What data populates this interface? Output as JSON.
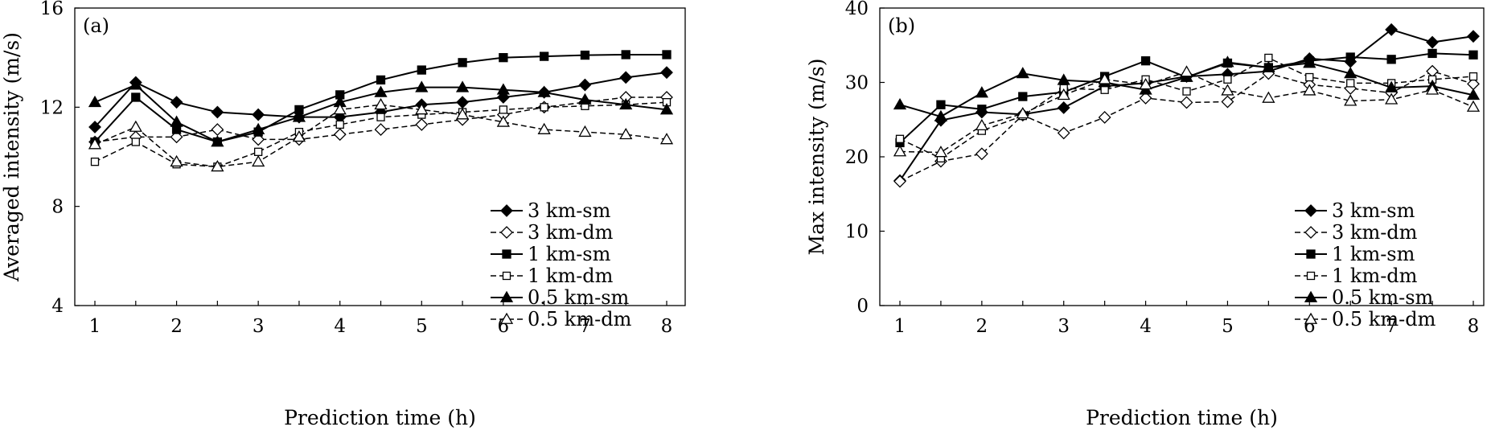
{
  "chart_data": [
    {
      "type": "line",
      "panel_label": "(a)",
      "xlabel": "Prediction time (h)",
      "ylabel": "Averaged intensity (m/s)",
      "xlim": [
        1,
        8
      ],
      "ylim": [
        4,
        16
      ],
      "xticks": [
        "1",
        "2",
        "3",
        "4",
        "5",
        "6",
        "7",
        "8"
      ],
      "yticks": [
        "4",
        "8",
        "12",
        "16"
      ],
      "legend_position": "lower-right",
      "x": [
        1,
        1.5,
        2,
        2.5,
        3,
        3.5,
        4,
        4.5,
        5,
        5.5,
        6,
        6.5,
        7,
        7.5,
        8
      ],
      "series": [
        {
          "name": "3 km-sm",
          "dashed": false,
          "marker": "diamond-filled",
          "values": [
            11.2,
            13.0,
            12.2,
            11.8,
            11.7,
            11.6,
            11.6,
            11.8,
            12.1,
            12.2,
            12.4,
            12.6,
            12.9,
            13.2,
            13.4
          ]
        },
        {
          "name": "3 km-dm",
          "dashed": true,
          "marker": "diamond-open",
          "values": [
            10.6,
            10.8,
            10.8,
            11.1,
            10.7,
            10.7,
            10.9,
            11.1,
            11.3,
            11.5,
            11.7,
            12.0,
            12.2,
            12.4,
            12.4
          ]
        },
        {
          "name": "1 km-sm",
          "dashed": false,
          "marker": "square-filled",
          "values": [
            10.6,
            12.4,
            11.1,
            10.6,
            11.0,
            11.9,
            12.5,
            13.1,
            13.5,
            13.8,
            14.0,
            14.05,
            14.1,
            14.12,
            14.12
          ]
        },
        {
          "name": "1 km-dm",
          "dashed": true,
          "marker": "square-open",
          "values": [
            9.8,
            10.6,
            9.7,
            9.6,
            10.2,
            11.0,
            11.3,
            11.6,
            11.7,
            11.8,
            11.9,
            12.0,
            12.05,
            12.1,
            12.2
          ]
        },
        {
          "name": "0.5 km-sm",
          "dashed": false,
          "marker": "triangle-filled",
          "values": [
            12.2,
            12.9,
            11.4,
            10.6,
            11.1,
            11.6,
            12.2,
            12.6,
            12.8,
            12.8,
            12.7,
            12.6,
            12.3,
            12.1,
            11.9
          ]
        },
        {
          "name": "0.5 km-dm",
          "dashed": true,
          "marker": "triangle-open",
          "values": [
            10.5,
            11.2,
            9.8,
            9.6,
            9.8,
            10.8,
            11.9,
            12.1,
            11.9,
            11.7,
            11.4,
            11.1,
            11.0,
            10.9,
            10.7
          ]
        }
      ]
    },
    {
      "type": "line",
      "panel_label": "(b)",
      "xlabel": "Prediction time (h)",
      "ylabel": "Max intensity (m/s)",
      "xlim": [
        1,
        8
      ],
      "ylim": [
        0,
        40
      ],
      "xticks": [
        "1",
        "2",
        "3",
        "4",
        "5",
        "6",
        "7",
        "8"
      ],
      "yticks": [
        "0",
        "10",
        "20",
        "30",
        "40"
      ],
      "legend_position": "lower-right",
      "x": [
        1,
        1.5,
        2,
        2.5,
        3,
        3.5,
        4,
        4.5,
        5,
        5.5,
        6,
        6.5,
        7,
        7.5,
        8
      ],
      "series": [
        {
          "name": "3 km-sm",
          "dashed": false,
          "marker": "diamond-filled",
          "values": [
            16.8,
            24.9,
            26.0,
            25.7,
            26.6,
            29.5,
            29.9,
            30.8,
            31.1,
            31.5,
            33.2,
            32.8,
            37.1,
            35.4,
            36.2
          ]
        },
        {
          "name": "3 km-dm",
          "dashed": true,
          "marker": "diamond-open",
          "values": [
            16.7,
            19.4,
            20.4,
            25.6,
            23.2,
            25.3,
            27.9,
            27.3,
            27.4,
            31.2,
            29.7,
            29.2,
            28.6,
            31.5,
            29.8
          ]
        },
        {
          "name": "1 km-sm",
          "dashed": false,
          "marker": "square-filled",
          "values": [
            21.9,
            27.0,
            26.4,
            28.1,
            28.7,
            30.8,
            32.9,
            30.7,
            32.6,
            32.0,
            32.9,
            33.4,
            33.1,
            33.9,
            33.7
          ]
        },
        {
          "name": "1 km-dm",
          "dashed": true,
          "marker": "square-open",
          "values": [
            22.4,
            19.8,
            23.5,
            25.5,
            29.2,
            29.0,
            30.4,
            28.8,
            30.4,
            33.3,
            30.7,
            29.9,
            29.9,
            30.4,
            30.8
          ]
        },
        {
          "name": "0.5 km-sm",
          "dashed": false,
          "marker": "triangle-filled",
          "values": [
            27.0,
            25.4,
            28.6,
            31.2,
            30.3,
            30.0,
            29.0,
            30.7,
            32.7,
            32.0,
            32.6,
            31.2,
            29.3,
            29.5,
            28.3
          ]
        },
        {
          "name": "0.5 km-dm",
          "dashed": true,
          "marker": "triangle-open",
          "values": [
            20.7,
            20.6,
            24.2,
            25.8,
            28.3,
            30.4,
            29.7,
            31.4,
            28.9,
            27.9,
            28.9,
            27.5,
            27.7,
            29.0,
            26.7
          ]
        }
      ]
    }
  ]
}
